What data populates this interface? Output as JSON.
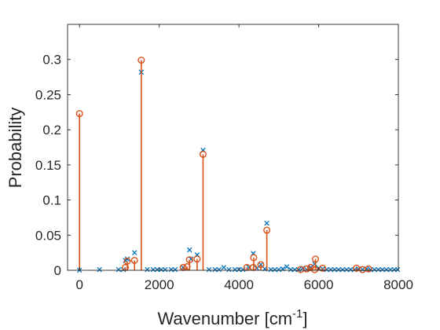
{
  "chart_data": {
    "type": "scatter",
    "title": "",
    "xlabel": "Wavenumber [cm",
    "xlabel_sup": "-1",
    "xlabel_suffix": "]",
    "ylabel": "Probability",
    "xlim": [
      -300,
      8000
    ],
    "ylim": [
      0,
      0.35
    ],
    "xticks": [
      0,
      2000,
      4000,
      6000,
      8000
    ],
    "xtick_labels": [
      "0",
      "2000",
      "4000",
      "6000",
      "8000"
    ],
    "yticks": [
      0,
      0.05,
      0.1,
      0.15,
      0.2,
      0.25,
      0.3
    ],
    "ytick_labels": [
      "0",
      "0.05",
      "0.1",
      "0.15",
      "0.2",
      "0.25",
      "0.3"
    ],
    "grid": false,
    "colors": {
      "series_x": "#0072BD",
      "series_o": "#D95319",
      "axis": "#262626"
    },
    "series": [
      {
        "marker": "x",
        "style": "markers",
        "x": [
          0,
          500,
          980,
          1100,
          1150,
          1200,
          1380,
          1550,
          1700,
          1850,
          1950,
          2050,
          2150,
          2300,
          2400,
          2600,
          2760,
          2800,
          2950,
          3100,
          3250,
          3400,
          3500,
          3620,
          3750,
          3900,
          4000,
          4100,
          4250,
          4360,
          4450,
          4550,
          4650,
          4700,
          4800,
          4900,
          5000,
          5100,
          5200,
          5300,
          5400,
          5500,
          5600,
          5700,
          5800,
          5900,
          6000,
          6100,
          6200,
          6300,
          6400,
          6500,
          6600,
          6700,
          6800,
          6900,
          7000,
          7100,
          7200,
          7300,
          7400,
          7500,
          7600,
          7700,
          7800,
          7900,
          7980
        ],
        "y": [
          0.0,
          0.001,
          0.001,
          0.001,
          0.014,
          0.016,
          0.025,
          0.282,
          0.001,
          0.001,
          0.001,
          0.001,
          0.001,
          0.001,
          0.001,
          0.004,
          0.029,
          0.016,
          0.022,
          0.171,
          0.001,
          0.001,
          0.001,
          0.004,
          0.001,
          0.001,
          0.001,
          0.001,
          0.004,
          0.024,
          0.003,
          0.008,
          0.002,
          0.067,
          0.001,
          0.001,
          0.001,
          0.002,
          0.005,
          0.001,
          0.001,
          0.001,
          0.003,
          0.001,
          0.004,
          0.009,
          0.003,
          0.002,
          0.001,
          0.001,
          0.001,
          0.001,
          0.001,
          0.001,
          0.001,
          0.001,
          0.002,
          0.001,
          0.002,
          0.001,
          0.001,
          0.001,
          0.001,
          0.001,
          0.001,
          0.001,
          0.001
        ]
      },
      {
        "marker": "o",
        "style": "stem",
        "x": [
          0,
          1150,
          1200,
          1380,
          1550,
          2600,
          2700,
          2760,
          2950,
          3100,
          4200,
          4360,
          4370,
          4550,
          4700,
          5550,
          5700,
          5800,
          5900,
          5920,
          6100,
          6950,
          7100,
          7250
        ],
        "y": [
          0.223,
          0.004,
          0.013,
          0.014,
          0.299,
          0.004,
          0.005,
          0.015,
          0.016,
          0.165,
          0.004,
          0.004,
          0.018,
          0.008,
          0.057,
          0.001,
          0.002,
          0.004,
          0.001,
          0.016,
          0.003,
          0.003,
          0.001,
          0.002
        ]
      }
    ]
  }
}
